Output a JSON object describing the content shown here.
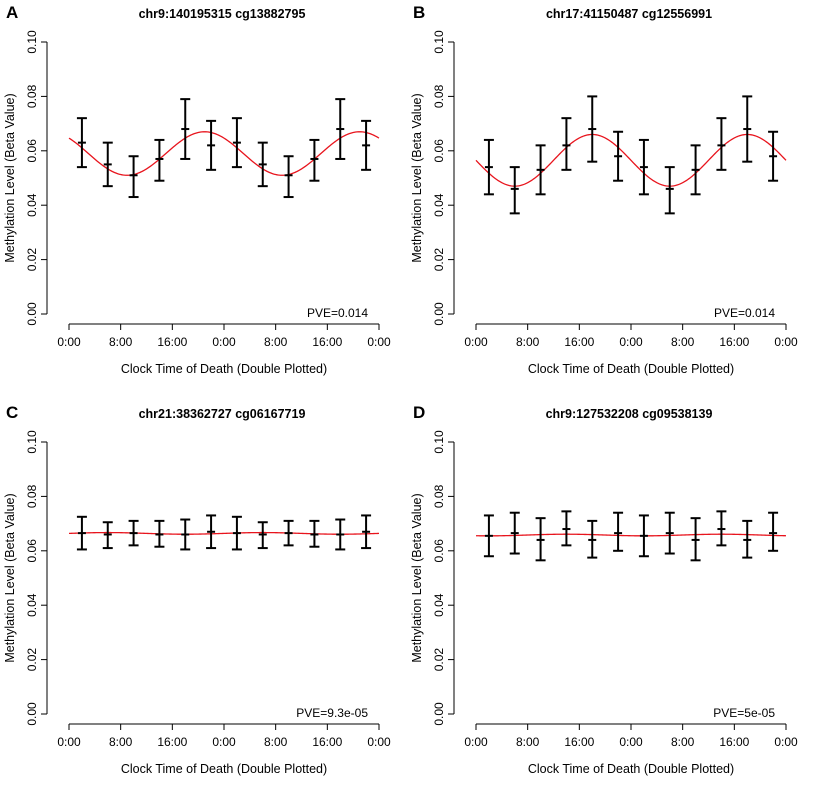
{
  "chart_data": [
    {
      "type": "line",
      "panel_letter": "A",
      "title": "chr9:140195315 cg13882795",
      "xlabel": "Clock Time of Death (Double Plotted)",
      "ylabel": "Methylation Level (Beta Value)",
      "x_tick_labels": [
        "0:00",
        "8:00",
        "16:00",
        "0:00",
        "8:00",
        "16:00",
        "0:00"
      ],
      "x_tick_values": [
        0,
        8,
        16,
        24,
        32,
        40,
        48
      ],
      "xlim": [
        0,
        48
      ],
      "y_ticks": [
        0.0,
        0.02,
        0.04,
        0.06,
        0.08,
        0.1
      ],
      "y_tick_labels": [
        "0.00",
        "0.02",
        "0.04",
        "0.06",
        "0.08",
        "0.10"
      ],
      "ylim": [
        0,
        0.1
      ],
      "annotation": "PVE=0.014",
      "points": {
        "x": [
          2,
          6,
          10,
          14,
          18,
          22,
          26,
          30,
          34,
          38,
          42,
          46
        ],
        "mean": [
          0.063,
          0.055,
          0.051,
          0.057,
          0.068,
          0.062,
          0.063,
          0.055,
          0.051,
          0.057,
          0.068,
          0.062
        ],
        "upper": [
          0.072,
          0.063,
          0.058,
          0.064,
          0.079,
          0.071,
          0.072,
          0.063,
          0.058,
          0.064,
          0.079,
          0.071
        ],
        "lower": [
          0.054,
          0.047,
          0.043,
          0.049,
          0.057,
          0.053,
          0.054,
          0.047,
          0.043,
          0.049,
          0.057,
          0.053
        ]
      },
      "fit": {
        "mean": 0.059,
        "amplitude": 0.008,
        "peak_hour": 21,
        "color": "#e8141d"
      }
    },
    {
      "type": "line",
      "panel_letter": "B",
      "title": "chr17:41150487 cg12556991",
      "xlabel": "Clock Time of Death (Double Plotted)",
      "ylabel": "Methylation Level (Beta Value)",
      "x_tick_labels": [
        "0:00",
        "8:00",
        "16:00",
        "0:00",
        "8:00",
        "16:00",
        "0:00"
      ],
      "x_tick_values": [
        0,
        8,
        16,
        24,
        32,
        40,
        48
      ],
      "xlim": [
        0,
        48
      ],
      "y_ticks": [
        0.0,
        0.02,
        0.04,
        0.06,
        0.08,
        0.1
      ],
      "y_tick_labels": [
        "0.00",
        "0.02",
        "0.04",
        "0.06",
        "0.08",
        "0.10"
      ],
      "ylim": [
        0,
        0.1
      ],
      "annotation": "PVE=0.014",
      "points": {
        "x": [
          2,
          6,
          10,
          14,
          18,
          22,
          26,
          30,
          34,
          38,
          42,
          46
        ],
        "mean": [
          0.054,
          0.046,
          0.053,
          0.062,
          0.068,
          0.058,
          0.054,
          0.046,
          0.053,
          0.062,
          0.068,
          0.058
        ],
        "upper": [
          0.064,
          0.054,
          0.062,
          0.072,
          0.08,
          0.067,
          0.064,
          0.054,
          0.062,
          0.072,
          0.08,
          0.067
        ],
        "lower": [
          0.044,
          0.037,
          0.044,
          0.053,
          0.056,
          0.049,
          0.044,
          0.037,
          0.044,
          0.053,
          0.056,
          0.049
        ]
      },
      "fit": {
        "mean": 0.0565,
        "amplitude": 0.0095,
        "peak_hour": 18,
        "color": "#e8141d"
      }
    },
    {
      "type": "line",
      "panel_letter": "C",
      "title": "chr21:38362727 cg06167719",
      "xlabel": "Clock Time of Death (Double Plotted)",
      "ylabel": "Methylation Level (Beta Value)",
      "x_tick_labels": [
        "0:00",
        "8:00",
        "16:00",
        "0:00",
        "8:00",
        "16:00",
        "0:00"
      ],
      "x_tick_values": [
        0,
        8,
        16,
        24,
        32,
        40,
        48
      ],
      "xlim": [
        0,
        48
      ],
      "y_ticks": [
        0.0,
        0.02,
        0.04,
        0.06,
        0.08,
        0.1
      ],
      "y_tick_labels": [
        "0.00",
        "0.02",
        "0.04",
        "0.06",
        "0.08",
        "0.10"
      ],
      "ylim": [
        0,
        0.1
      ],
      "annotation": "PVE=9.3e-05",
      "points": {
        "x": [
          2,
          6,
          10,
          14,
          18,
          22,
          26,
          30,
          34,
          38,
          42,
          46
        ],
        "mean": [
          0.0665,
          0.066,
          0.0665,
          0.066,
          0.066,
          0.067,
          0.0665,
          0.066,
          0.0665,
          0.066,
          0.066,
          0.067
        ],
        "upper": [
          0.0725,
          0.0705,
          0.071,
          0.071,
          0.0715,
          0.073,
          0.0725,
          0.0705,
          0.071,
          0.071,
          0.0715,
          0.073
        ],
        "lower": [
          0.0605,
          0.061,
          0.062,
          0.0615,
          0.0605,
          0.061,
          0.0605,
          0.061,
          0.062,
          0.0615,
          0.0605,
          0.061
        ]
      },
      "fit": {
        "mean": 0.0664,
        "amplitude": 0.0003,
        "peak_hour": 6,
        "color": "#e8141d"
      }
    },
    {
      "type": "line",
      "panel_letter": "D",
      "title": "chr9:127532208 cg09538139",
      "xlabel": "Clock Time of Death (Double Plotted)",
      "ylabel": "Methylation Level (Beta Value)",
      "x_tick_labels": [
        "0:00",
        "8:00",
        "16:00",
        "0:00",
        "8:00",
        "16:00",
        "0:00"
      ],
      "x_tick_values": [
        0,
        8,
        16,
        24,
        32,
        40,
        48
      ],
      "xlim": [
        0,
        48
      ],
      "y_ticks": [
        0.0,
        0.02,
        0.04,
        0.06,
        0.08,
        0.1
      ],
      "y_tick_labels": [
        "0.00",
        "0.02",
        "0.04",
        "0.06",
        "0.08",
        "0.10"
      ],
      "ylim": [
        0,
        0.1
      ],
      "annotation": "PVE=5e-05",
      "points": {
        "x": [
          2,
          6,
          10,
          14,
          18,
          22,
          26,
          30,
          34,
          38,
          42,
          46
        ],
        "mean": [
          0.0655,
          0.0665,
          0.064,
          0.068,
          0.064,
          0.0665,
          0.0655,
          0.0665,
          0.064,
          0.068,
          0.064,
          0.0665
        ],
        "upper": [
          0.073,
          0.074,
          0.072,
          0.0745,
          0.071,
          0.074,
          0.073,
          0.074,
          0.072,
          0.0745,
          0.071,
          0.074
        ],
        "lower": [
          0.058,
          0.059,
          0.0565,
          0.062,
          0.0575,
          0.06,
          0.058,
          0.059,
          0.0565,
          0.062,
          0.0575,
          0.06
        ]
      },
      "fit": {
        "mean": 0.0658,
        "amplitude": 0.0003,
        "peak_hour": 14,
        "color": "#e8141d"
      }
    }
  ]
}
